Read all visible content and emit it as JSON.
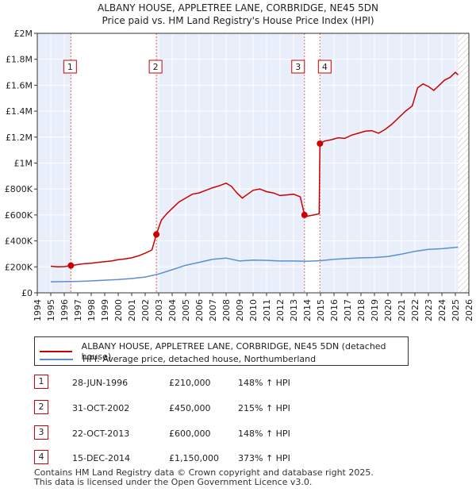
{
  "title_line1": "ALBANY HOUSE, APPLETREE LANE, CORBRIDGE, NE45 5DN",
  "title_line2": "Price paid vs. HM Land Registry's House Price Index (HPI)",
  "colors": {
    "property": "#cc0000",
    "hpi": "#5b8fd0",
    "shade": "#e8eefa",
    "marker_line": "#e06666"
  },
  "chart_data": {
    "type": "line",
    "y_ticks": [
      "£0",
      "£200K",
      "£400K",
      "£600K",
      "£800K",
      "£1M",
      "£1.2M",
      "£1.4M",
      "£1.6M",
      "£1.8M",
      "£2M"
    ],
    "ylim": [
      0,
      2000000
    ],
    "xlim": [
      1994,
      2026
    ],
    "x_ticks": [
      "1994",
      "1995",
      "1996",
      "1997",
      "1998",
      "1999",
      "2000",
      "2001",
      "2002",
      "2003",
      "2004",
      "2005",
      "2006",
      "2007",
      "2008",
      "2009",
      "2010",
      "2011",
      "2012",
      "2013",
      "2014",
      "2015",
      "2016",
      "2017",
      "2018",
      "2019",
      "2020",
      "2021",
      "2022",
      "2023",
      "2024",
      "2025",
      "2026"
    ],
    "shaded_ranges": [
      [
        1994,
        1996.49
      ],
      [
        2002.83,
        2013.81
      ],
      [
        2014.96,
        2025.2
      ]
    ],
    "hatched_from": 2025.2,
    "markers": [
      {
        "label": "1",
        "x": 1996.49,
        "y": 210000
      },
      {
        "label": "2",
        "x": 2002.83,
        "y": 450000
      },
      {
        "label": "3",
        "x": 2013.81,
        "y": 600000
      },
      {
        "label": "4",
        "x": 2014.96,
        "y": 1150000
      }
    ],
    "series": [
      {
        "name": "ALBANY HOUSE, APPLETREE LANE, CORBRIDGE, NE45 5DN (detached house)",
        "color": "#cc0000",
        "x": [
          1995.0,
          1995.5,
          1996.0,
          1996.49,
          1997.0,
          1997.5,
          1998.0,
          1998.5,
          1999.0,
          1999.5,
          2000.0,
          2000.5,
          2001.0,
          2001.5,
          2002.0,
          2002.5,
          2002.83,
          2003.2,
          2003.6,
          2004.0,
          2004.5,
          2005.0,
          2005.5,
          2006.0,
          2006.5,
          2007.0,
          2007.5,
          2008.0,
          2008.4,
          2008.8,
          2009.2,
          2009.6,
          2010.0,
          2010.5,
          2011.0,
          2011.5,
          2012.0,
          2012.5,
          2013.0,
          2013.5,
          2013.81,
          2014.0,
          2014.5,
          2014.9,
          2014.96,
          2015.3,
          2015.8,
          2016.3,
          2016.8,
          2017.3,
          2017.8,
          2018.3,
          2018.8,
          2019.3,
          2019.8,
          2020.3,
          2020.8,
          2021.3,
          2021.8,
          2022.2,
          2022.6,
          2023.0,
          2023.4,
          2023.8,
          2024.2,
          2024.6,
          2025.0,
          2025.2
        ],
        "values": [
          205000,
          200000,
          202000,
          210000,
          218000,
          225000,
          228000,
          235000,
          240000,
          245000,
          255000,
          262000,
          270000,
          285000,
          305000,
          330000,
          450000,
          560000,
          610000,
          650000,
          700000,
          730000,
          760000,
          770000,
          790000,
          810000,
          825000,
          845000,
          820000,
          770000,
          730000,
          760000,
          790000,
          800000,
          780000,
          770000,
          750000,
          755000,
          760000,
          740000,
          600000,
          590000,
          600000,
          610000,
          1150000,
          1170000,
          1180000,
          1195000,
          1190000,
          1215000,
          1230000,
          1245000,
          1250000,
          1230000,
          1260000,
          1300000,
          1350000,
          1400000,
          1440000,
          1580000,
          1610000,
          1590000,
          1560000,
          1600000,
          1640000,
          1660000,
          1700000,
          1680000
        ]
      },
      {
        "name": "HPI: Average price, detached house, Northumberland",
        "color": "#5b8fd0",
        "x": [
          1995.0,
          1996.0,
          1997.0,
          1998.0,
          1999.0,
          2000.0,
          2001.0,
          2002.0,
          2003.0,
          2004.0,
          2005.0,
          2006.0,
          2007.0,
          2008.0,
          2009.0,
          2010.0,
          2011.0,
          2012.0,
          2013.0,
          2014.0,
          2015.0,
          2016.0,
          2017.0,
          2018.0,
          2019.0,
          2020.0,
          2021.0,
          2022.0,
          2023.0,
          2024.0,
          2025.0,
          2025.2
        ],
        "values": [
          85000,
          86000,
          88000,
          92000,
          97000,
          102000,
          110000,
          122000,
          145000,
          178000,
          212000,
          235000,
          258000,
          268000,
          245000,
          252000,
          250000,
          245000,
          245000,
          243000,
          248000,
          258000,
          265000,
          270000,
          272000,
          280000,
          298000,
          320000,
          335000,
          340000,
          350000,
          352000
        ]
      }
    ]
  },
  "legend": {
    "property": "ALBANY HOUSE, APPLETREE LANE, CORBRIDGE, NE45 5DN (detached house)",
    "hpi": "HPI: Average price, detached house, Northumberland"
  },
  "sales": [
    {
      "num": "1",
      "date": "28-JUN-1996",
      "price": "£210,000",
      "hpi": "148% ↑ HPI"
    },
    {
      "num": "2",
      "date": "31-OCT-2002",
      "price": "£450,000",
      "hpi": "215% ↑ HPI"
    },
    {
      "num": "3",
      "date": "22-OCT-2013",
      "price": "£600,000",
      "hpi": "148% ↑ HPI"
    },
    {
      "num": "4",
      "date": "15-DEC-2014",
      "price": "£1,150,000",
      "hpi": "373% ↑ HPI"
    }
  ],
  "footer_line1": "Contains HM Land Registry data © Crown copyright and database right 2025.",
  "footer_line2": "This data is licensed under the Open Government Licence v3.0."
}
